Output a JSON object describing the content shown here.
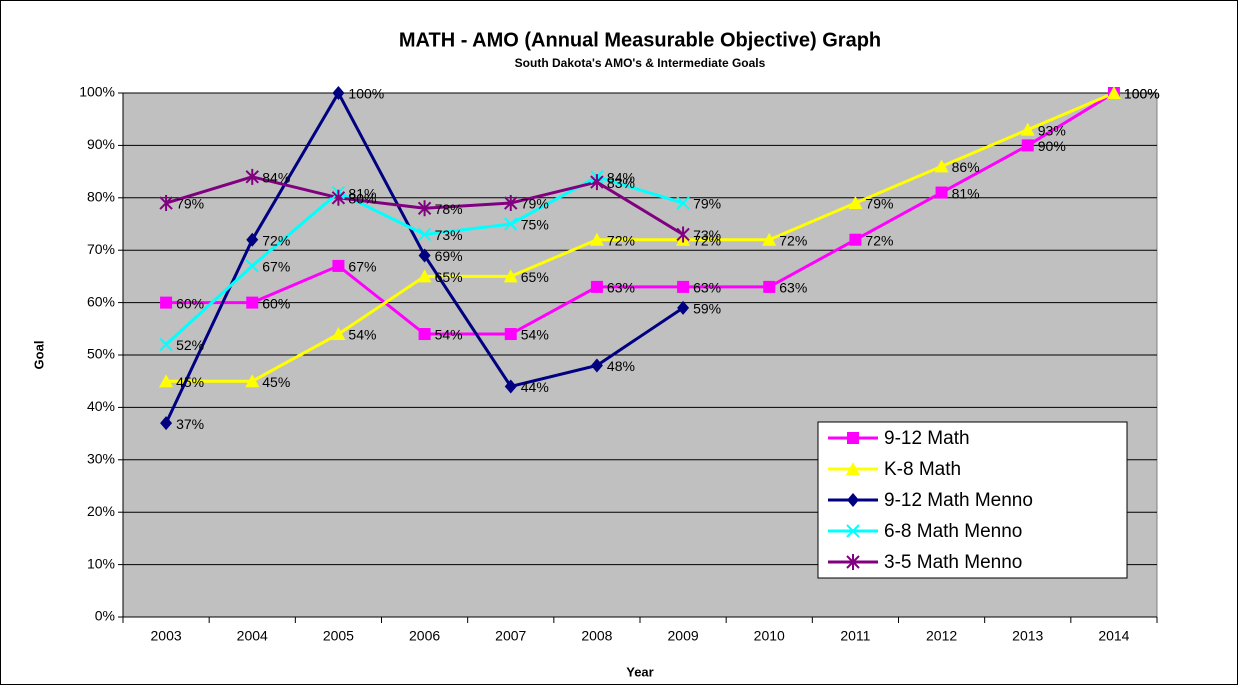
{
  "chart_data": {
    "type": "line",
    "title": "MATH -  AMO (Annual Measurable Objective) Graph",
    "subtitle": "South Dakota's AMO's & Intermediate Goals",
    "x_label": "Year",
    "y_label": "Goal",
    "categories": [
      "2003",
      "2004",
      "2005",
      "2006",
      "2007",
      "2008",
      "2009",
      "2010",
      "2011",
      "2012",
      "2013",
      "2014"
    ],
    "ylim": [
      0,
      100
    ],
    "yticks": [
      {
        "value": 0,
        "label": "0%"
      },
      {
        "value": 10,
        "label": "10%"
      },
      {
        "value": 20,
        "label": "20%"
      },
      {
        "value": 30,
        "label": "30%"
      },
      {
        "value": 40,
        "label": "40%"
      },
      {
        "value": 50,
        "label": "50%"
      },
      {
        "value": 60,
        "label": "60%"
      },
      {
        "value": 70,
        "label": "70%"
      },
      {
        "value": 80,
        "label": "80%"
      },
      {
        "value": 90,
        "label": "90%"
      },
      {
        "value": 100,
        "label": "100%"
      }
    ],
    "grid": true,
    "legend": "lower right",
    "plot_background": "#c0c0c0",
    "series": [
      {
        "name": "9-12 Math",
        "color": "#ff00ff",
        "marker": "square",
        "values": [
          60,
          60,
          67,
          54,
          54,
          63,
          63,
          63,
          72,
          81,
          90,
          100
        ],
        "value_labels": [
          "60%",
          "60%",
          "67%",
          "54%",
          "54%",
          "63%",
          "63%",
          "63%",
          "72%",
          "81%",
          "90%",
          "100%"
        ]
      },
      {
        "name": "K-8 Math",
        "color": "#ffff00",
        "marker": "triangle",
        "values": [
          45,
          45,
          54,
          65,
          65,
          72,
          72,
          72,
          79,
          86,
          93,
          100
        ],
        "value_labels": [
          "45%",
          "45%",
          "54%",
          "65%",
          "65%",
          "72%",
          "72%",
          "72%",
          "79%",
          "86%",
          "93%",
          "100%"
        ]
      },
      {
        "name": "9-12 Math Menno",
        "color": "#000080",
        "marker": "diamond",
        "values": [
          37,
          72,
          100,
          69,
          44,
          48,
          59,
          null,
          null,
          null,
          null,
          null
        ],
        "value_labels": [
          "37%",
          "72%",
          "100%",
          "69%",
          "44%",
          "48%",
          "59%",
          null,
          null,
          null,
          null,
          null
        ]
      },
      {
        "name": "6-8 Math Menno",
        "color": "#00ffff",
        "marker": "x",
        "values": [
          52,
          67,
          81,
          73,
          75,
          84,
          79,
          null,
          null,
          null,
          null,
          null
        ],
        "value_labels": [
          "52%",
          "67%",
          "81%",
          "73%",
          "75%",
          "84%",
          "79%",
          null,
          null,
          null,
          null,
          null
        ]
      },
      {
        "name": "3-5 Math Menno",
        "color": "#800080",
        "marker": "star",
        "values": [
          79,
          84,
          80,
          78,
          79,
          83,
          73,
          null,
          null,
          null,
          null,
          null
        ],
        "value_labels": [
          "79%",
          "84%",
          "80%",
          "78%",
          "79%",
          "83%",
          "73%",
          null,
          null,
          null,
          null,
          null
        ]
      }
    ]
  }
}
